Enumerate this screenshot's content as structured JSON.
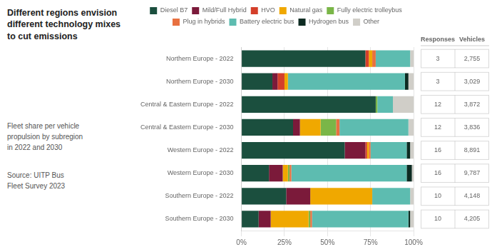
{
  "chart_data": {
    "type": "bar",
    "orientation": "horizontal",
    "stacked": true,
    "title": "Different regions envision\ndifferent technology mixes\nto cut emissions",
    "subtitle": "Fleet share per vehicle\npropulsion by subregion\nin 2022 and 2030",
    "annotations": [
      "Source: UITP Bus\nFleet Survey 2023"
    ],
    "categories": [
      "Northern Europe - 2022",
      "Northern Europe - 2030",
      "Central & Eastern Europe - 2022",
      "Central & Eastern Europe - 2030",
      "Western Europe - 2022",
      "Western Europe - 2030",
      "Southern Europe - 2022",
      "Southern Europe - 2030"
    ],
    "series": [
      {
        "name": "Diesel B7",
        "color": "#1b4f3e",
        "values": [
          72,
          18,
          78,
          30,
          60,
          16,
          26,
          10
        ]
      },
      {
        "name": "Mild/Full Hybrid",
        "color": "#7b1a3a",
        "values": [
          0,
          3,
          0,
          4,
          12,
          8,
          14,
          7
        ]
      },
      {
        "name": "HVO",
        "color": "#d43f2a",
        "values": [
          2,
          4,
          0,
          0,
          1,
          0,
          0,
          0
        ]
      },
      {
        "name": "Natural gas",
        "color": "#f0a800",
        "values": [
          2,
          2,
          0,
          12,
          1,
          3,
          36,
          22
        ]
      },
      {
        "name": "Fully electric trolleybus",
        "color": "#7ab648",
        "values": [
          0,
          0,
          1,
          9,
          0,
          1,
          0,
          1
        ]
      },
      {
        "name": "Plug in hybrids",
        "color": "#e87040",
        "values": [
          2,
          0,
          0,
          2,
          1,
          1,
          0,
          1
        ]
      },
      {
        "name": "Battery electric bus",
        "color": "#5dbcb0",
        "values": [
          20,
          68,
          9,
          40,
          21,
          67,
          22,
          56
        ]
      },
      {
        "name": "Hydrogen bus",
        "color": "#0d2b22",
        "values": [
          0,
          2,
          0,
          0,
          2,
          3,
          0,
          1
        ]
      },
      {
        "name": "Other",
        "color": "#d0cec8",
        "values": [
          2,
          3,
          12,
          3,
          2,
          1,
          2,
          2
        ]
      }
    ],
    "xlim": [
      0,
      100
    ],
    "xticks": [
      {
        "value": 0,
        "label": "0%"
      },
      {
        "value": 25,
        "label": "25%"
      },
      {
        "value": 50,
        "label": "50%"
      },
      {
        "value": 75,
        "label": "75%"
      },
      {
        "value": 100,
        "label": "100%"
      }
    ],
    "grid": true,
    "legend": "top",
    "table": {
      "columns": [
        "Responses",
        "Vehicles"
      ],
      "rows": [
        [
          3,
          {
            "value": 2755,
            "label": "2,755"
          }
        ],
        [
          3,
          {
            "value": 3029,
            "label": "3,029"
          }
        ],
        [
          12,
          {
            "value": 3872,
            "label": "3,872"
          }
        ],
        [
          12,
          {
            "value": 3836,
            "label": "3,836"
          }
        ],
        [
          16,
          {
            "value": 8891,
            "label": "8,891"
          }
        ],
        [
          16,
          {
            "value": 9787,
            "label": "9,787"
          }
        ],
        [
          10,
          {
            "value": 4148,
            "label": "4,148"
          }
        ],
        [
          10,
          {
            "value": 4205,
            "label": "4,205"
          }
        ]
      ]
    }
  }
}
